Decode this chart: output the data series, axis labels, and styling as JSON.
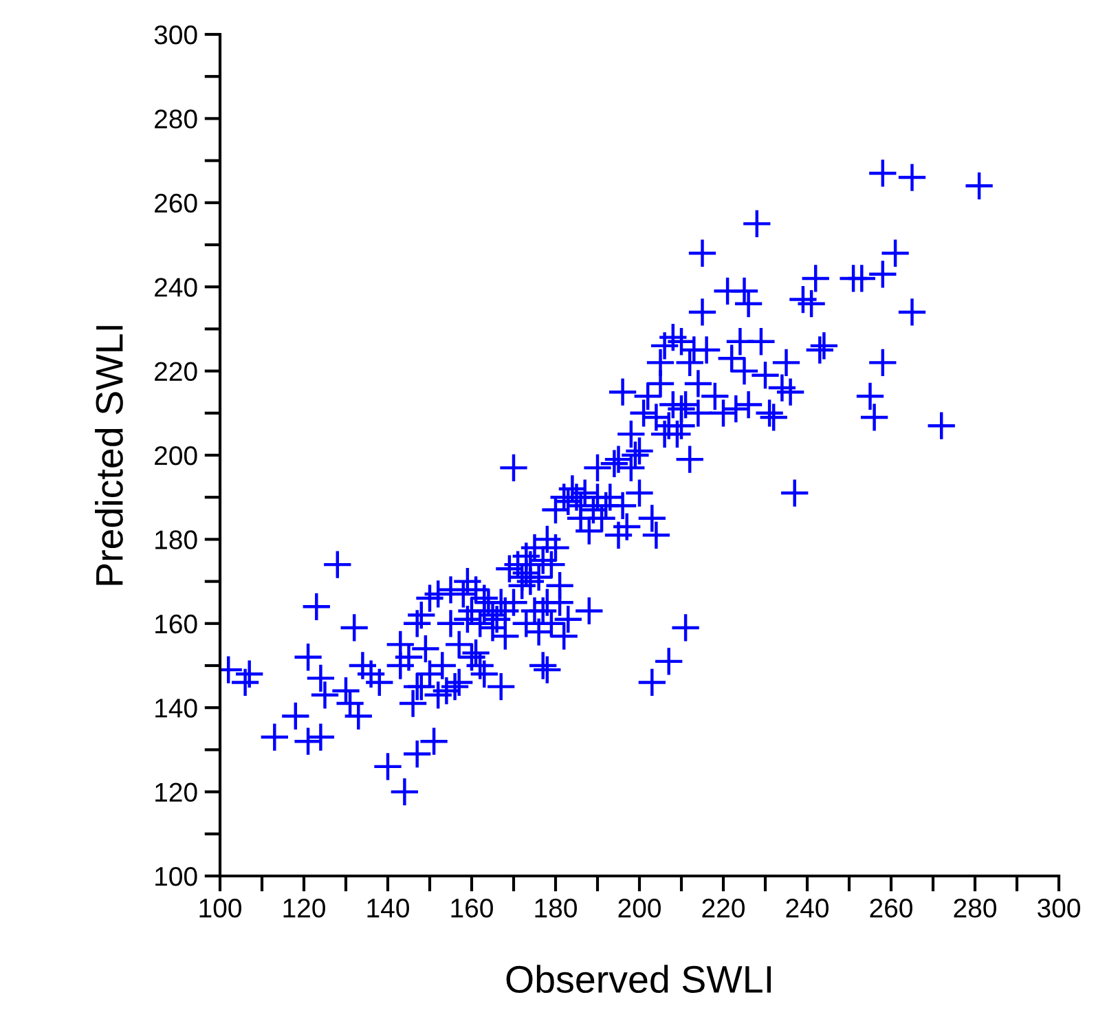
{
  "chart_data": {
    "type": "scatter",
    "xlabel": "Observed SWLI",
    "ylabel": "Predicted SWLI",
    "marker": "cross",
    "grid": false,
    "legend": false,
    "xlim": [
      100,
      300
    ],
    "ylim": [
      100,
      300
    ],
    "xticks": [
      100,
      {
        "value": 110,
        "label": null
      },
      120,
      {
        "value": 130,
        "label": null
      },
      140,
      {
        "value": 150,
        "label": null
      },
      160,
      {
        "value": 170,
        "label": null
      },
      180,
      {
        "value": 190,
        "label": null
      },
      200,
      {
        "value": 210,
        "label": null
      },
      220,
      {
        "value": 230,
        "label": null
      },
      240,
      {
        "value": 250,
        "label": null
      },
      260,
      {
        "value": 270,
        "label": null
      },
      280,
      {
        "value": 290,
        "label": null
      },
      300
    ],
    "yticks": [
      100,
      {
        "value": 110,
        "label": null
      },
      120,
      {
        "value": 130,
        "label": null
      },
      140,
      {
        "value": 150,
        "label": null
      },
      160,
      {
        "value": 170,
        "label": null
      },
      180,
      {
        "value": 190,
        "label": null
      },
      200,
      {
        "value": 210,
        "label": null
      },
      220,
      {
        "value": 230,
        "label": null
      },
      240,
      {
        "value": 250,
        "label": null
      },
      260,
      {
        "value": 270,
        "label": null
      },
      280,
      {
        "value": 290,
        "label": null
      },
      300
    ],
    "series": [
      {
        "color": "#0000ff",
        "x": [
          102,
          106,
          107,
          113,
          118,
          121,
          121,
          123,
          124,
          124,
          125,
          128,
          130,
          131,
          132,
          133,
          134,
          136,
          138,
          140,
          143,
          143,
          144,
          145,
          146,
          147,
          147,
          147,
          148,
          148,
          149,
          150,
          150,
          151,
          152,
          152,
          153,
          154,
          155,
          155,
          156,
          157,
          157,
          158,
          159,
          159,
          160,
          160,
          161,
          161,
          162,
          162,
          163,
          163,
          163,
          164,
          165,
          165,
          166,
          167,
          167,
          168,
          168,
          169,
          170,
          170,
          171,
          172,
          172,
          173,
          173,
          173,
          174,
          174,
          175,
          175,
          176,
          176,
          177,
          177,
          177,
          178,
          178,
          178,
          179,
          179,
          180,
          180,
          181,
          181,
          182,
          182,
          183,
          183,
          184,
          185,
          186,
          186,
          187,
          188,
          188,
          189,
          190,
          190,
          191,
          192,
          193,
          194,
          195,
          195,
          196,
          196,
          197,
          198,
          198,
          199,
          200,
          200,
          201,
          202,
          203,
          203,
          204,
          204,
          205,
          205,
          206,
          206,
          207,
          207,
          208,
          208,
          209,
          210,
          210,
          210,
          211,
          211,
          212,
          212,
          213,
          214,
          214,
          215,
          215,
          216,
          218,
          220,
          221,
          222,
          223,
          224,
          225,
          225,
          226,
          226,
          228,
          229,
          230,
          231,
          232,
          234,
          235,
          236,
          237,
          239,
          241,
          242,
          243,
          244,
          251,
          253,
          255,
          256,
          258,
          258,
          258,
          261,
          265,
          265,
          272,
          281
        ],
        "values": [
          149,
          146,
          148,
          133,
          138,
          152,
          132,
          164,
          147,
          133,
          143,
          174,
          144,
          141,
          159,
          138,
          150,
          148,
          146,
          126,
          150,
          155,
          120,
          152,
          141,
          145,
          129,
          160,
          162,
          145,
          154,
          148,
          166,
          132,
          143,
          167,
          150,
          144,
          160,
          168,
          145,
          155,
          146,
          167,
          161,
          170,
          163,
          152,
          168,
          153,
          160,
          150,
          148,
          163,
          166,
          165,
          162,
          159,
          161,
          165,
          145,
          163,
          157,
          173,
          197,
          165,
          174,
          171,
          169,
          172,
          176,
          160,
          174,
          170,
          178,
          163,
          171,
          158,
          175,
          150,
          163,
          149,
          180,
          165,
          174,
          160,
          187,
          178,
          165,
          169,
          190,
          157,
          189,
          161,
          192,
          190,
          188,
          185,
          191,
          182,
          163,
          187,
          190,
          197,
          185,
          188,
          190,
          198,
          181,
          199,
          188,
          215,
          183,
          197,
          205,
          200,
          201,
          191,
          210,
          214,
          146,
          185,
          209,
          181,
          222,
          217,
          205,
          226,
          207,
          151,
          228,
          212,
          205,
          207,
          211,
          227,
          212,
          159,
          199,
          222,
          225,
          210,
          217,
          248,
          234,
          225,
          214,
          210,
          239,
          223,
          211,
          227,
          239,
          220,
          236,
          212,
          255,
          227,
          219,
          210,
          209,
          216,
          222,
          215,
          191,
          237,
          236,
          242,
          225,
          226,
          242,
          242,
          214,
          209,
          243,
          222,
          267,
          248,
          234,
          266,
          207,
          264
        ]
      }
    ]
  }
}
